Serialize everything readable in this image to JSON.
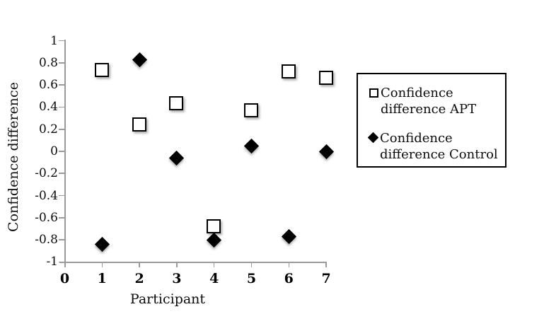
{
  "colors": {
    "background": "#ffffff",
    "axis": "#9a9a9a",
    "marker": "#000000",
    "text": "#000000",
    "legend_border": "#000000"
  },
  "chart_data": {
    "type": "scatter",
    "title": "",
    "xlabel": "Participant",
    "ylabel": "Confidence difference",
    "xlim": [
      0,
      7
    ],
    "ylim": [
      -1,
      1
    ],
    "grid": false,
    "legend_position": "right",
    "xticks": [
      0,
      1,
      2,
      3,
      4,
      5,
      6,
      7
    ],
    "xtick_labels": [
      "0",
      "1",
      "2",
      "3",
      "4",
      "5",
      "6",
      "7"
    ],
    "yticks": [
      1,
      0.8,
      0.6,
      0.4,
      0.2,
      0,
      -0.2,
      -0.4,
      -0.6,
      -0.8,
      -1
    ],
    "ytick_labels": [
      "1",
      "0.8",
      "0.6",
      "0.4",
      "0.2",
      "0",
      "-0.2",
      "-0.4",
      "-0.6",
      "-0.8",
      "-1"
    ],
    "x": [
      1,
      2,
      3,
      4,
      5,
      6,
      7
    ],
    "series": [
      {
        "name": "Confidence difference APT",
        "label_lines": [
          "Confidence",
          "difference APT"
        ],
        "marker": "open-square",
        "values": [
          0.73,
          0.24,
          0.43,
          -0.68,
          0.37,
          0.72,
          0.66
        ]
      },
      {
        "name": "Confidence difference Control",
        "label_lines": [
          "Confidence",
          "difference Control"
        ],
        "marker": "filled-diamond",
        "values": [
          -0.84,
          0.83,
          -0.06,
          -0.8,
          0.05,
          -0.77,
          0
        ]
      }
    ]
  }
}
